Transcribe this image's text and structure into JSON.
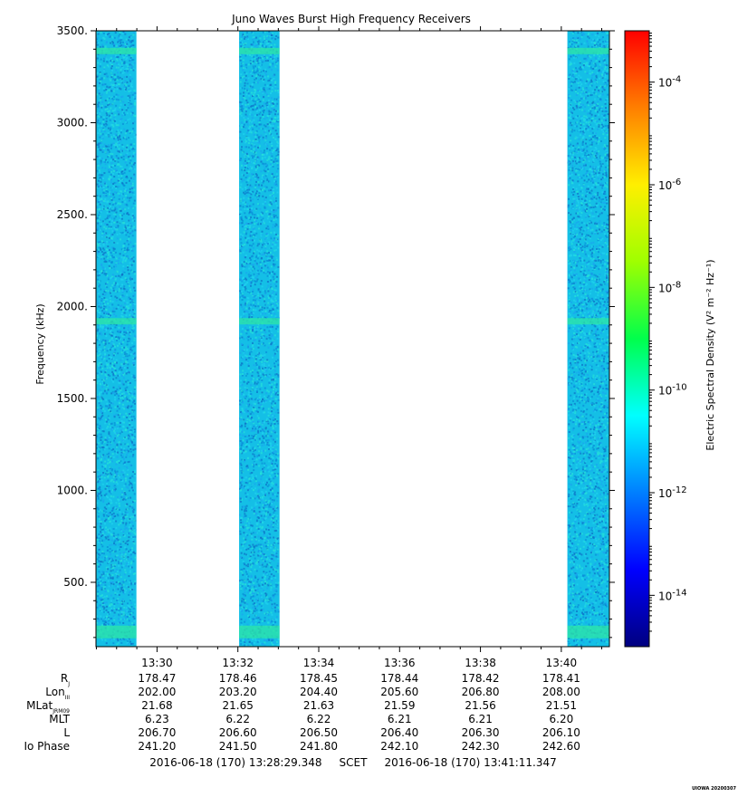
{
  "chart_data": {
    "type": "heatmap",
    "title": "Juno Waves Burst High Frequency Receivers",
    "xlabel": "",
    "ylabel": "Frequency (kHz)",
    "colorbar_label": "Electric Spectral Density (V² m⁻² Hz⁻¹)",
    "ylim": [
      150,
      3500
    ],
    "y_ticks": [
      {
        "value": 500,
        "label": "500."
      },
      {
        "value": 1000,
        "label": "1000."
      },
      {
        "value": 1500,
        "label": "1500."
      },
      {
        "value": 2000,
        "label": "2000."
      },
      {
        "value": 2500,
        "label": "2500."
      },
      {
        "value": 3000,
        "label": "3000."
      },
      {
        "value": 3500,
        "label": "3500."
      }
    ],
    "x_start_minutes": 808.49,
    "x_end_minutes": 821.19,
    "x_ticks": [
      {
        "value": 810,
        "label": "13:30"
      },
      {
        "value": 812,
        "label": "13:32"
      },
      {
        "value": 814,
        "label": "13:34"
      },
      {
        "value": 816,
        "label": "13:36"
      },
      {
        "value": 818,
        "label": "13:38"
      },
      {
        "value": 820,
        "label": "13:40"
      }
    ],
    "data_intervals": [
      {
        "start": 808.49,
        "end": 809.49
      },
      {
        "start": 812.03,
        "end": 813.03
      },
      {
        "start": 820.15,
        "end": 821.19
      }
    ],
    "band_features": [
      {
        "freq_khz": 3390,
        "note": "enhanced narrow band"
      },
      {
        "freq_khz": 1920,
        "note": "enhanced narrow band"
      },
      {
        "freq_khz": 230,
        "note": "enhanced low-frequency band"
      }
    ],
    "typical_level_log10": -12,
    "colorbar": {
      "scale": "log",
      "range_log10": [
        -15,
        -3
      ],
      "ticks": [
        {
          "exp": -14,
          "label": "10",
          "sup": "-14"
        },
        {
          "exp": -12,
          "label": "10",
          "sup": "-12"
        },
        {
          "exp": -10,
          "label": "10",
          "sup": "-10"
        },
        {
          "exp": -8,
          "label": "10",
          "sup": "-8"
        },
        {
          "exp": -6,
          "label": "10",
          "sup": "-6"
        },
        {
          "exp": -4,
          "label": "10",
          "sup": "-4"
        }
      ]
    },
    "ephemeris": {
      "rows": [
        {
          "name": "R",
          "sub": "J",
          "values": [
            "178.47",
            "178.46",
            "178.45",
            "178.44",
            "178.42",
            "178.41"
          ]
        },
        {
          "name": "Lon",
          "sub": "III",
          "values": [
            "202.00",
            "203.20",
            "204.40",
            "205.60",
            "206.80",
            "208.00"
          ]
        },
        {
          "name": "MLat",
          "sub": "JRM09",
          "values": [
            "21.68",
            "21.65",
            "21.63",
            "21.59",
            "21.56",
            "21.51"
          ]
        },
        {
          "name": "MLT",
          "sub": "",
          "values": [
            "6.23",
            "6.22",
            "6.22",
            "6.21",
            "6.21",
            "6.20"
          ]
        },
        {
          "name": "L",
          "sub": "",
          "values": [
            "206.70",
            "206.60",
            "206.50",
            "206.40",
            "206.30",
            "206.10"
          ]
        },
        {
          "name": "Io Phase",
          "sub": "",
          "values": [
            "241.20",
            "241.50",
            "241.80",
            "242.10",
            "242.30",
            "242.60"
          ]
        }
      ]
    },
    "time_range_text": "2016-06-18 (170) 13:28:29.348     SCET     2016-06-18 (170) 13:41:11.347",
    "stamp": "UIOWA 20200307"
  }
}
